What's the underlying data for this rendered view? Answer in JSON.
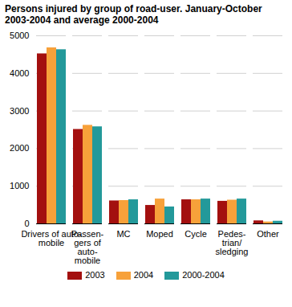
{
  "chart_data": {
    "type": "bar",
    "title": "Persons injured by group of road-user. January-October 2003-2004 and average 2000-2004",
    "categories": [
      "Drivers of auto-\nmobile",
      "Passen-\ngers of\nauto-\nmobile",
      "MC",
      "Moped",
      "Cycle",
      "Pedes-\ntrian/\nsledging",
      "Other"
    ],
    "series": [
      {
        "name": "2003",
        "color": "#a3100f",
        "values": [
          4520,
          2510,
          610,
          490,
          640,
          600,
          80
        ]
      },
      {
        "name": "2004",
        "color": "#f7a13a",
        "values": [
          4680,
          2620,
          620,
          660,
          640,
          630,
          50
        ]
      },
      {
        "name": "2000-2004",
        "color": "#23999a",
        "values": [
          4630,
          2580,
          640,
          450,
          660,
          660,
          70
        ]
      }
    ],
    "ylim": [
      0,
      5000
    ],
    "yticks": [
      0,
      1000,
      2000,
      3000,
      4000,
      5000
    ],
    "grid": true,
    "legend": "bottom"
  }
}
